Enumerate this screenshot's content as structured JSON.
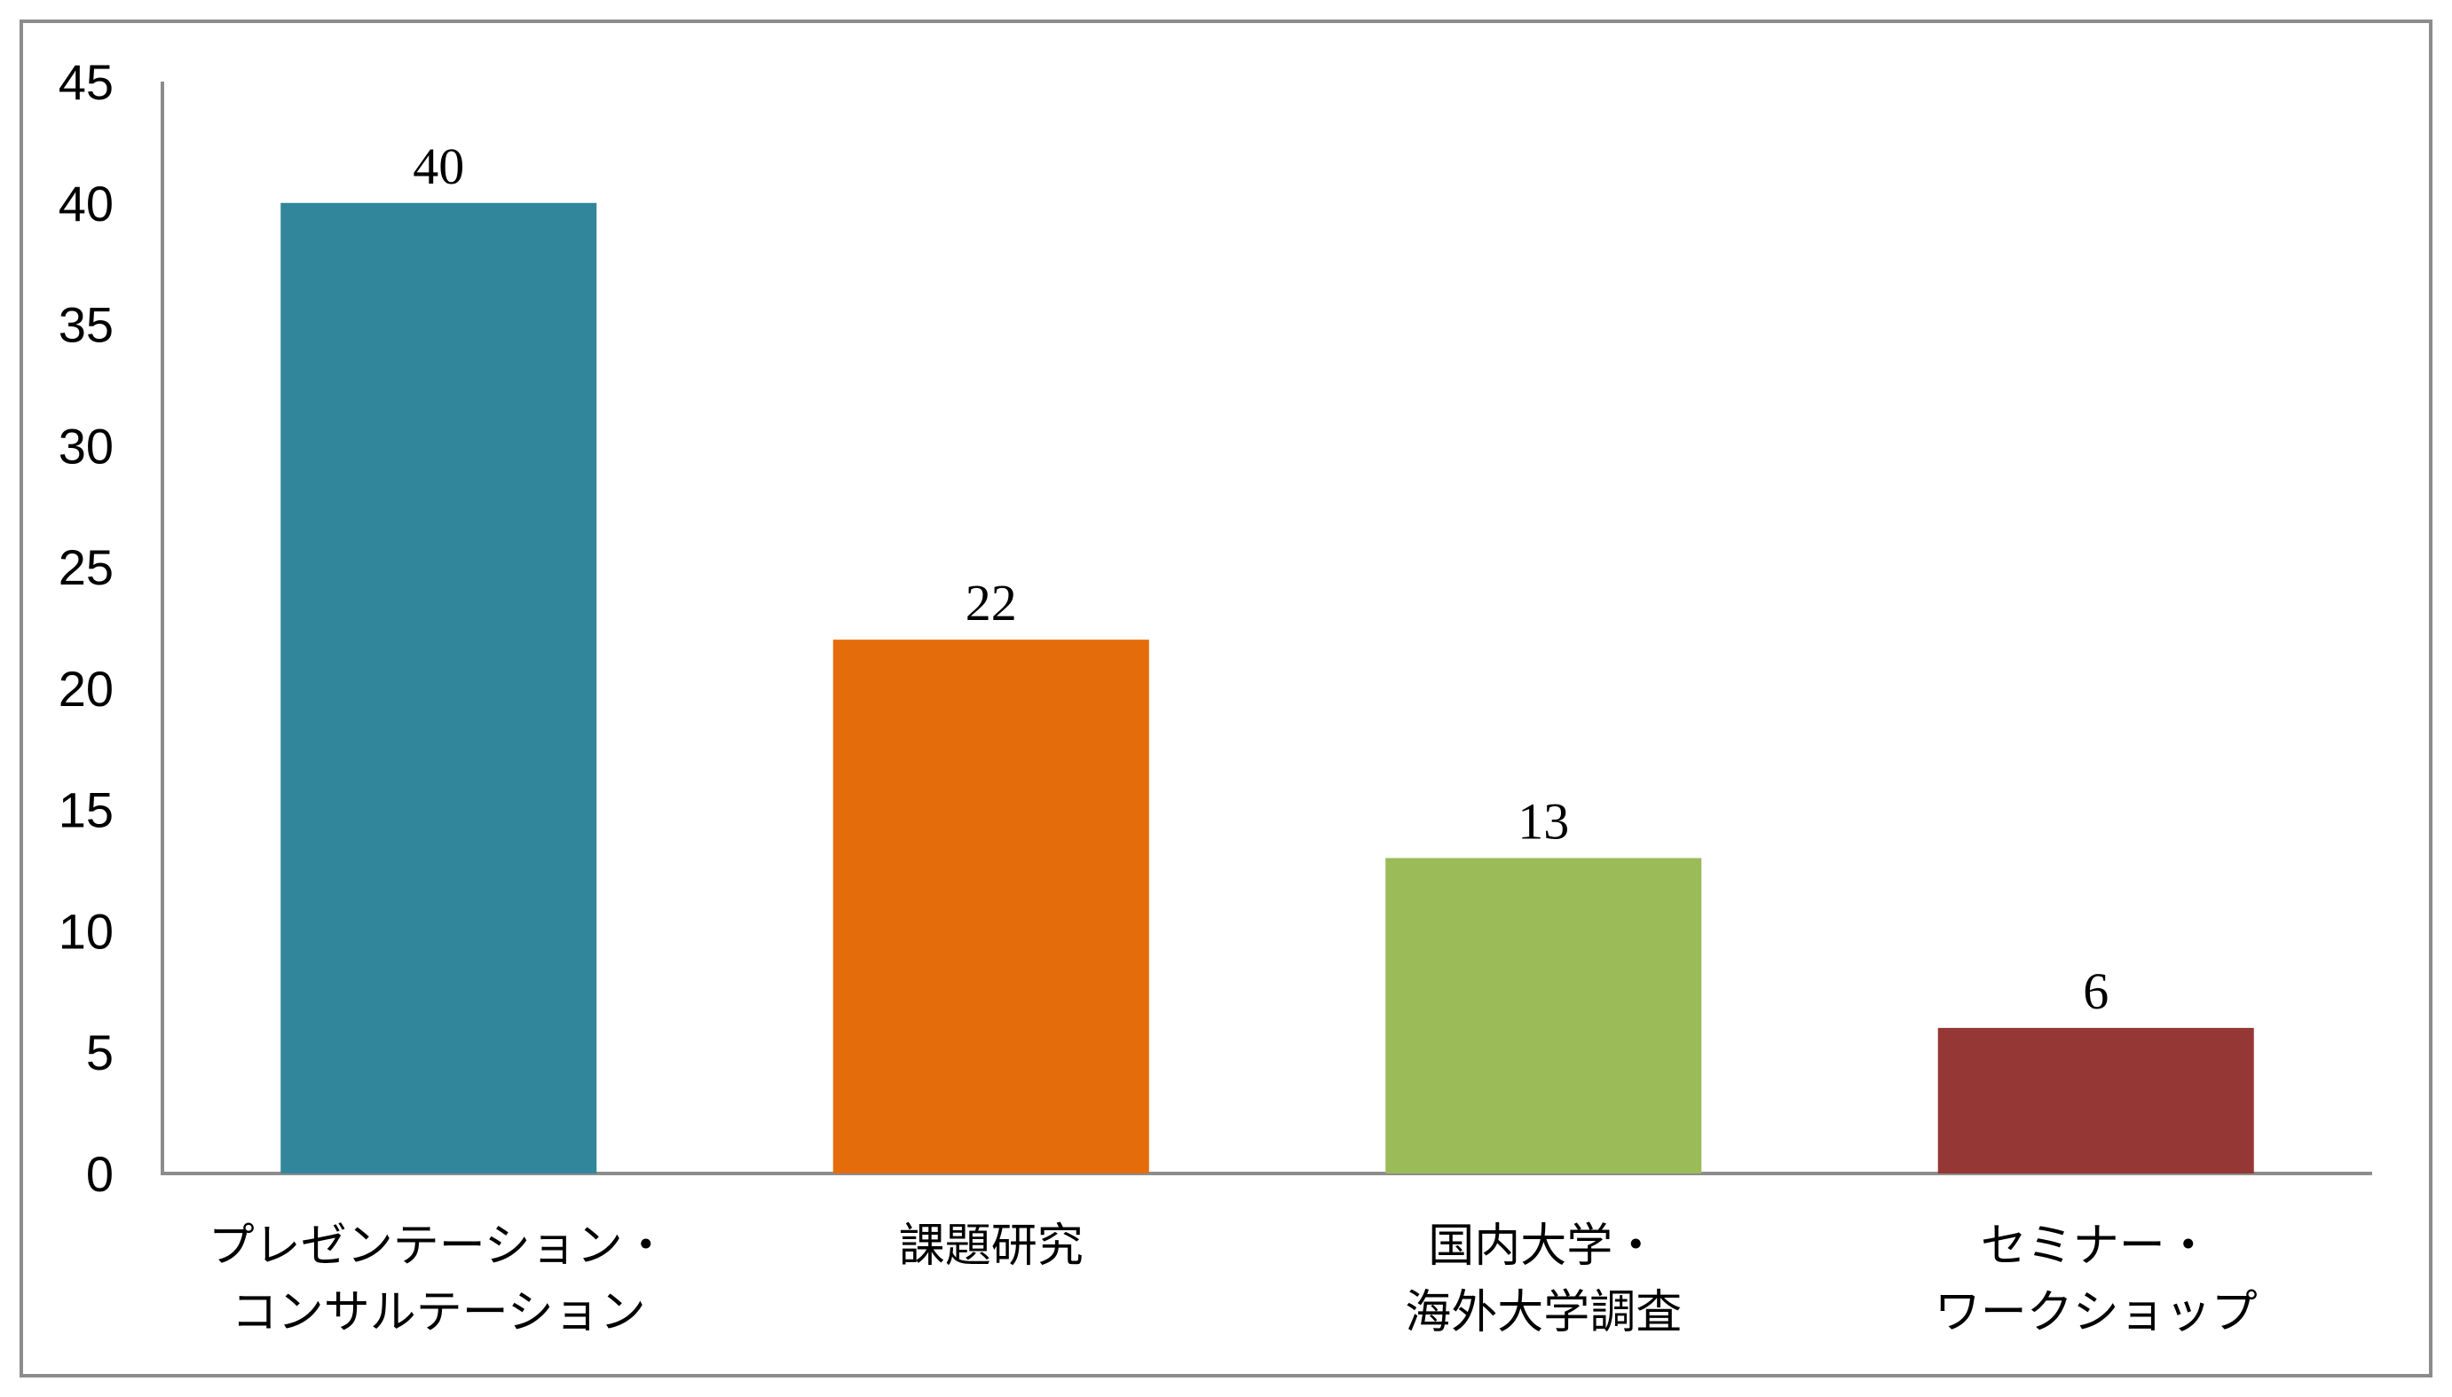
{
  "chart_data": {
    "type": "bar",
    "categories": [
      [
        "プレゼンテーション・",
        "コンサルテーション"
      ],
      [
        "課題研究"
      ],
      [
        "国内大学・",
        "海外大学調査"
      ],
      [
        "セミナー・",
        "ワークショップ"
      ]
    ],
    "values": [
      40,
      22,
      13,
      6
    ],
    "data_labels": [
      "40",
      "22",
      "13",
      "6"
    ],
    "colors": [
      "#31869b",
      "#e46c0a",
      "#9bbb59",
      "#953735"
    ],
    "ylim": [
      0,
      45
    ],
    "yticks": [
      0,
      5,
      10,
      15,
      20,
      25,
      30,
      35,
      40,
      45
    ],
    "ytick_labels": [
      "0",
      "5",
      "10",
      "15",
      "20",
      "25",
      "30",
      "35",
      "40",
      "45"
    ],
    "title": "",
    "xlabel": "",
    "ylabel": "",
    "grid": false,
    "legend": "none"
  }
}
